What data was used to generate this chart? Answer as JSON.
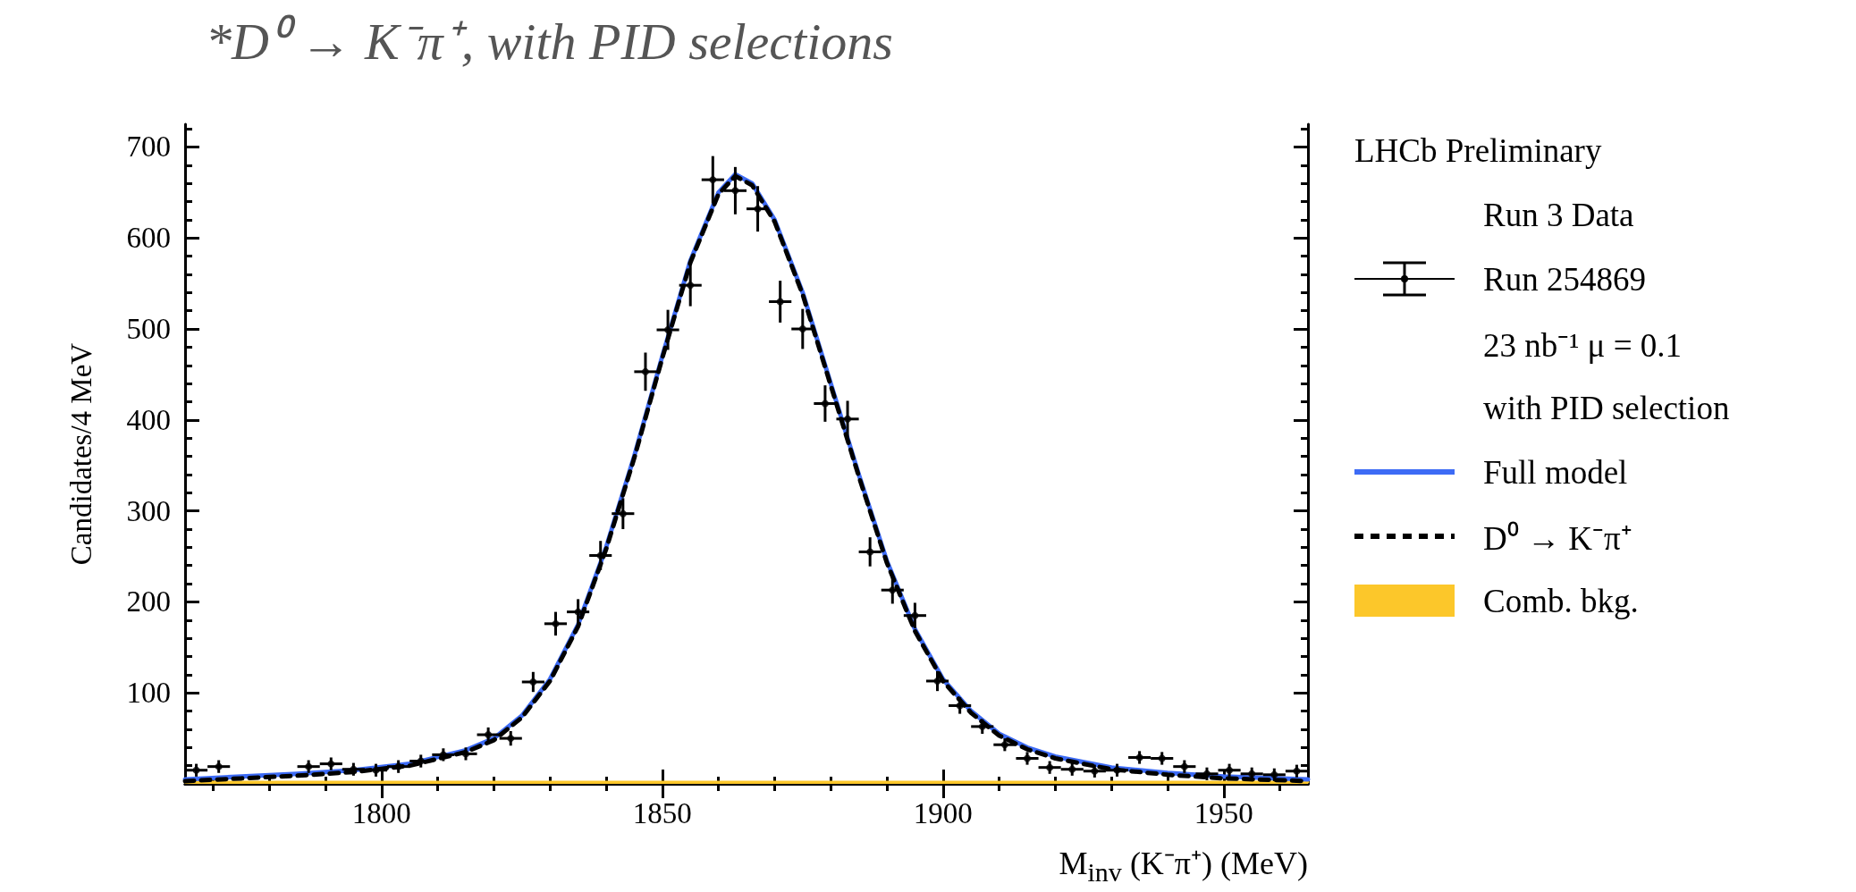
{
  "chart_data": {
    "type": "scatter",
    "title": "*D⁰ → K⁻π⁺, with PID selections",
    "xlabel": "M$_{inv}$ (K⁻π⁺) (MeV)",
    "ylabel": "Candidates/4 MeV",
    "legend_title": "LHCb Preliminary",
    "annotations": [
      "Run 3 Data",
      "23 nb⁻¹  μ = 0.1",
      "with PID selection"
    ],
    "xlim": [
      1765,
      1965
    ],
    "xticks": [
      1800,
      1850,
      1900,
      1950
    ],
    "ylim": [
      0,
      725
    ],
    "yticks": [
      100,
      200,
      300,
      400,
      500,
      600,
      700
    ],
    "grid": false,
    "legend": "right",
    "series": [
      {
        "type": "area",
        "name": "Comb. bkg.",
        "color": "#fcc72a",
        "marker": "none",
        "x": [
          1765,
          1965
        ],
        "values": [
          2,
          2
        ]
      },
      {
        "type": "line",
        "name": "Full model",
        "color": "#3d6bf5",
        "marker": "none",
        "line_style": "solid",
        "x": [
          1765,
          1775,
          1785,
          1795,
          1805,
          1815,
          1820,
          1825,
          1830,
          1835,
          1840,
          1845,
          1850,
          1855,
          1860,
          1863,
          1866,
          1870,
          1875,
          1880,
          1885,
          1890,
          1895,
          1900,
          1905,
          1910,
          1915,
          1920,
          1930,
          1940,
          1950,
          1965
        ],
        "values": [
          5,
          8,
          11,
          15,
          22,
          37,
          50,
          75,
          115,
          175,
          260,
          360,
          470,
          575,
          650,
          670,
          660,
          620,
          540,
          440,
          340,
          245,
          170,
          115,
          80,
          55,
          40,
          30,
          18,
          12,
          8,
          5
        ]
      },
      {
        "type": "line",
        "name": "D⁰ → K⁻π⁺",
        "color": "#000000",
        "marker": "none",
        "line_style": "dashed",
        "x": [
          1765,
          1775,
          1785,
          1795,
          1805,
          1815,
          1820,
          1825,
          1830,
          1835,
          1840,
          1845,
          1850,
          1855,
          1860,
          1863,
          1866,
          1870,
          1875,
          1880,
          1885,
          1890,
          1895,
          1900,
          1905,
          1910,
          1915,
          1920,
          1930,
          1940,
          1950,
          1965
        ],
        "values": [
          3,
          6,
          9,
          13,
          20,
          35,
          48,
          73,
          113,
          173,
          258,
          358,
          468,
          573,
          648,
          668,
          658,
          618,
          538,
          438,
          338,
          243,
          168,
          113,
          78,
          53,
          38,
          28,
          16,
          10,
          6,
          3
        ]
      },
      {
        "name": "Run 254869",
        "color": "#000000",
        "marker": "circle",
        "x": [
          1767,
          1771,
          1775,
          1779,
          1783,
          1787,
          1791,
          1795,
          1799,
          1803,
          1807,
          1811,
          1815,
          1819,
          1823,
          1827,
          1831,
          1835,
          1839,
          1843,
          1847,
          1851,
          1855,
          1859,
          1863,
          1867,
          1871,
          1875,
          1879,
          1883,
          1887,
          1891,
          1895,
          1899,
          1903,
          1907,
          1911,
          1915,
          1919,
          1923,
          1927,
          1931,
          1935,
          1939,
          1943,
          1947,
          1951,
          1955,
          1959,
          1963
        ],
        "values": [
          15,
          19,
          null,
          null,
          null,
          19,
          22,
          16,
          15,
          19,
          25,
          32,
          33,
          54,
          50,
          112,
          176,
          189,
          251,
          297,
          453,
          499,
          548,
          664,
          652,
          632,
          530,
          500,
          418,
          401,
          255,
          213,
          185,
          113,
          86,
          63,
          43,
          28,
          18,
          16,
          14,
          15,
          29,
          28,
          19,
          11,
          15,
          11,
          10,
          14
        ],
        "errors": [
          7,
          7,
          null,
          null,
          null,
          7,
          7,
          7,
          7,
          7,
          7,
          7,
          7,
          8,
          8,
          11,
          13,
          14,
          16,
          17,
          21,
          22,
          23,
          26,
          26,
          25,
          23,
          22,
          20,
          20,
          16,
          15,
          14,
          11,
          9,
          8,
          7,
          7,
          7,
          7,
          7,
          7,
          7,
          7,
          7,
          7,
          7,
          7,
          7,
          7
        ],
        "xerrors": [
          2,
          2,
          null,
          null,
          null,
          2,
          2,
          2,
          2,
          2,
          2,
          2,
          2,
          2,
          2,
          2,
          2,
          2,
          2,
          2,
          2,
          2,
          2,
          2,
          2,
          2,
          2,
          2,
          2,
          2,
          2,
          2,
          2,
          2,
          2,
          2,
          2,
          2,
          2,
          2,
          2,
          2,
          2,
          2,
          2,
          2,
          2,
          2,
          2,
          2
        ]
      }
    ]
  }
}
